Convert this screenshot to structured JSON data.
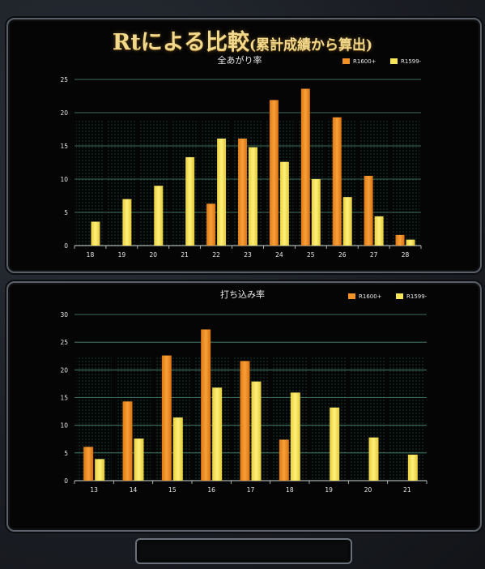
{
  "page": {
    "title": "Rtによる比較",
    "title_sub": "(累計成績から算出)"
  },
  "colors": {
    "series_a": "#f39327",
    "series_b": "#f7e55a",
    "grid": "#4d8c78",
    "text": "#e8e8e8",
    "eq": "#33e0d8"
  },
  "chart_data": [
    {
      "type": "bar",
      "title": "全あがり率",
      "xlabel": "",
      "ylabel": "",
      "ylim": [
        0,
        25
      ],
      "yticks": [
        0,
        5,
        10,
        15,
        20,
        25
      ],
      "grid": true,
      "legend": "top-right",
      "categories": [
        "18",
        "19",
        "20",
        "21",
        "22",
        "23",
        "24",
        "25",
        "26",
        "27",
        "28"
      ],
      "series": [
        {
          "name": "R1600+",
          "values": [
            null,
            null,
            null,
            null,
            6.3,
            16.1,
            21.9,
            23.6,
            19.3,
            10.5,
            1.6
          ]
        },
        {
          "name": "R1599-",
          "values": [
            3.6,
            7.0,
            9.0,
            13.3,
            16.1,
            14.8,
            12.6,
            10.0,
            7.3,
            4.4,
            0.9
          ]
        }
      ]
    },
    {
      "type": "bar",
      "title": "打ち込み率",
      "xlabel": "",
      "ylabel": "",
      "ylim": [
        0,
        30
      ],
      "yticks": [
        0,
        5,
        10,
        15,
        20,
        25,
        30
      ],
      "grid": true,
      "legend": "top-right",
      "categories": [
        "13",
        "14",
        "15",
        "16",
        "17",
        "18",
        "19",
        "20",
        "21"
      ],
      "series": [
        {
          "name": "R1600+",
          "values": [
            6.1,
            14.3,
            22.6,
            27.3,
            21.6,
            7.4,
            null,
            null,
            null
          ]
        },
        {
          "name": "R1599-",
          "values": [
            3.9,
            7.6,
            11.4,
            16.8,
            17.9,
            15.9,
            13.2,
            7.8,
            4.7
          ]
        }
      ]
    }
  ]
}
